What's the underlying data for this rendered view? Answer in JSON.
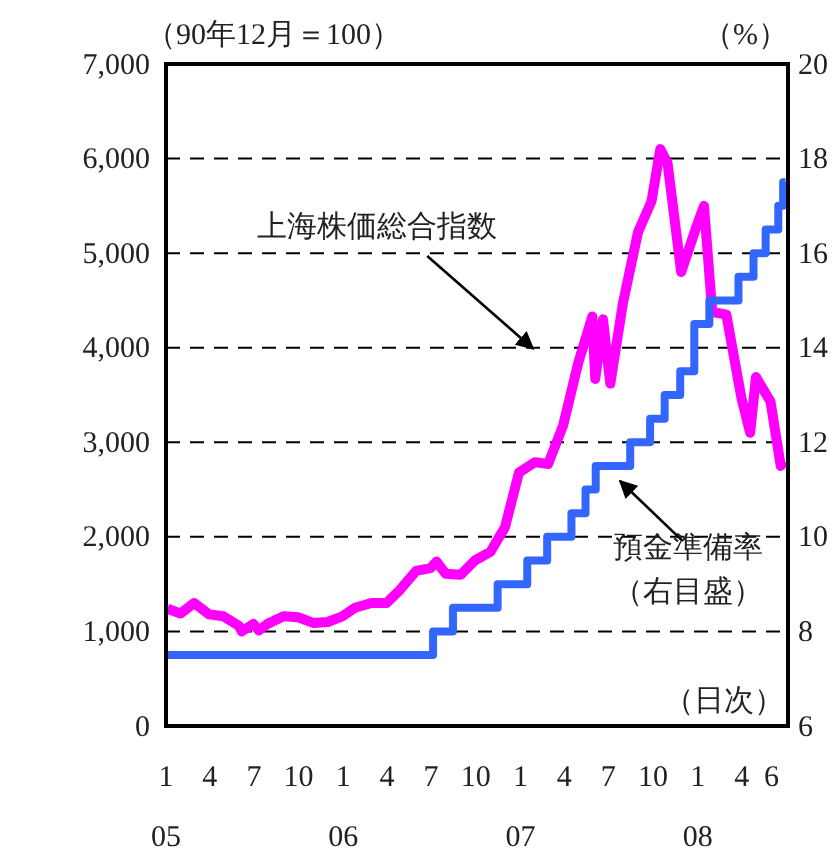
{
  "chart_data": {
    "type": "line",
    "ylabel": "（90年12月＝100）",
    "y2label": "（%）",
    "xlim": [
      "2005-01-01",
      "2008-07-05"
    ],
    "xticks": [
      {
        "value": "2005-01-01",
        "label": "1\n05"
      },
      {
        "value": "2005-04-01",
        "label": "4"
      },
      {
        "value": "2005-07-01",
        "label": "7"
      },
      {
        "value": "2005-10-01",
        "label": "10"
      },
      {
        "value": "2006-01-01",
        "label": "1\n06"
      },
      {
        "value": "2006-04-01",
        "label": "4"
      },
      {
        "value": "2006-07-01",
        "label": "7"
      },
      {
        "value": "2006-10-01",
        "label": "10"
      },
      {
        "value": "2007-01-01",
        "label": "1\n07"
      },
      {
        "value": "2007-04-01",
        "label": "4"
      },
      {
        "value": "2007-07-01",
        "label": "7"
      },
      {
        "value": "2007-10-01",
        "label": "10"
      },
      {
        "value": "2008-01-01",
        "label": "1\n08"
      },
      {
        "value": "2008-04-01",
        "label": "4"
      },
      {
        "value": "2008-06-01",
        "label": "6"
      }
    ],
    "ylim": [
      0,
      7000
    ],
    "yticks": [
      0,
      {
        "value": 1000,
        "label": "1,000"
      },
      {
        "value": 2000,
        "label": "2,000"
      },
      {
        "value": 3000,
        "label": "3,000"
      },
      {
        "value": 4000,
        "label": "4,000"
      },
      {
        "value": 5000,
        "label": "5,000"
      },
      {
        "value": 6000,
        "label": "6,000"
      },
      {
        "value": 7000,
        "label": "7,000"
      }
    ],
    "y2lim": [
      6,
      20
    ],
    "y2ticks": [
      6,
      8,
      10,
      12,
      14,
      16,
      18,
      20
    ],
    "grid": "y",
    "series": [
      {
        "color": "#ff00ff",
        "x": [
          "2005-01-04",
          "2005-01-31",
          "2005-02-28",
          "2005-03-31",
          "2005-04-29",
          "2005-05-31",
          "2005-06-06",
          "2005-06-30",
          "2005-07-11",
          "2005-07-29",
          "2005-08-31",
          "2005-09-30",
          "2005-10-31",
          "2005-11-30",
          "2005-12-30",
          "2006-01-25",
          "2006-02-28",
          "2006-03-31",
          "2006-04-28",
          "2006-05-31",
          "2006-06-30",
          "2006-07-12",
          "2006-07-31",
          "2006-08-31",
          "2006-09-29",
          "2006-10-31",
          "2006-11-30",
          "2006-12-29",
          "2007-01-31",
          "2007-02-27",
          "2007-03-30",
          "2007-04-30",
          "2007-05-29",
          "2007-06-04",
          "2007-06-20",
          "2007-07-05",
          "2007-07-31",
          "2007-08-31",
          "2007-09-28",
          "2007-10-16",
          "2007-10-31",
          "2007-11-28",
          "2007-12-28",
          "2008-01-14",
          "2008-01-31",
          "2008-02-29",
          "2008-03-31",
          "2008-04-18",
          "2008-04-30",
          "2008-05-30",
          "2008-06-20",
          "2008-06-27"
        ],
        "values": [
          1240,
          1190,
          1300,
          1180,
          1160,
          1060,
          1000,
          1080,
          1010,
          1080,
          1160,
          1150,
          1090,
          1100,
          1160,
          1250,
          1300,
          1300,
          1440,
          1640,
          1670,
          1740,
          1610,
          1600,
          1750,
          1840,
          2100,
          2680,
          2790,
          2770,
          3180,
          3840,
          4330,
          3670,
          4300,
          3620,
          4470,
          5220,
          5550,
          6100,
          5950,
          4800,
          5260,
          5500,
          4380,
          4350,
          3470,
          3100,
          3690,
          3430,
          2750,
          2800
        ]
      },
      {
        "type": "step",
        "axis": "y2",
        "color": "#3366ff",
        "x": [
          "2005-01-01",
          "2006-07-05",
          "2006-08-15",
          "2006-11-15",
          "2007-01-15",
          "2007-02-25",
          "2007-04-16",
          "2007-05-15",
          "2007-06-05",
          "2007-08-15",
          "2007-09-25",
          "2007-10-25",
          "2007-11-26",
          "2007-12-25",
          "2008-01-25",
          "2008-03-25",
          "2008-04-25",
          "2008-05-20",
          "2008-06-15",
          "2008-06-25",
          "2008-06-30"
        ],
        "values": [
          7.5,
          8,
          8.5,
          9,
          9.5,
          10,
          10.5,
          11,
          11.5,
          12,
          12.5,
          13,
          13.5,
          14.5,
          15,
          15.5,
          16,
          16.5,
          17,
          17.5,
          17.5
        ]
      }
    ],
    "annotations": [
      "上海株価総合指数",
      "預金準備率（右目盛）",
      "（日次）"
    ]
  }
}
